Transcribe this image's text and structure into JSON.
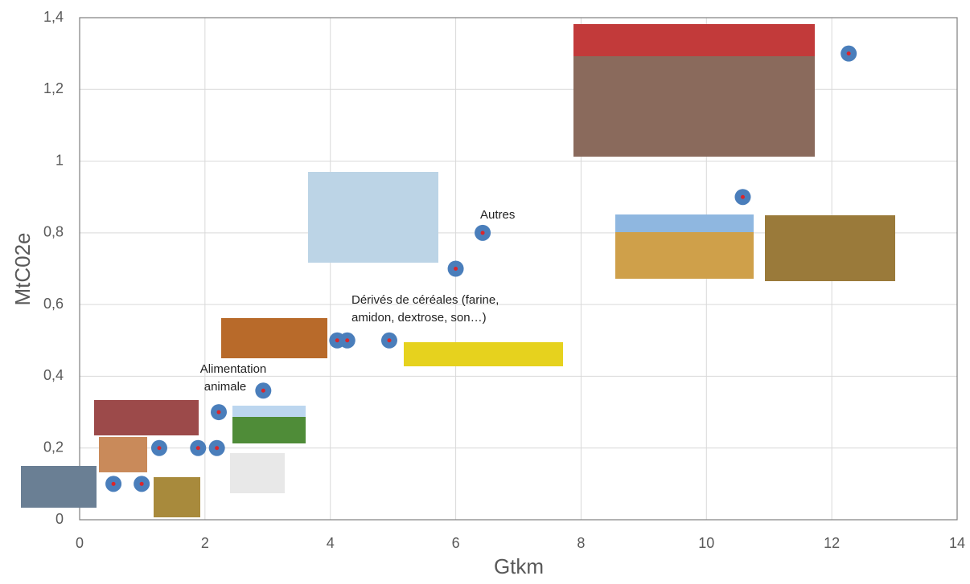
{
  "chart_data": {
    "type": "scatter",
    "x_label": "Gtkm",
    "y_label": "MtC02e",
    "x": [
      0.54,
      0.99,
      1.27,
      1.89,
      2.19,
      2.22,
      2.93,
      4.11,
      4.27,
      4.94,
      6.0,
      6.43,
      10.58,
      12.27
    ],
    "values": [
      0.1,
      0.1,
      0.2,
      0.2,
      0.2,
      0.3,
      0.36,
      0.5,
      0.5,
      0.5,
      0.7,
      0.8,
      0.9,
      1.3
    ],
    "color": "#4a7ebb",
    "xlim": [
      0,
      14
    ],
    "xticks": [
      0,
      2,
      4,
      6,
      8,
      10,
      12,
      14
    ],
    "ylim": [
      0,
      1.4
    ],
    "yticks": [
      0,
      {
        "value": 0.2,
        "label": "0,2"
      },
      {
        "value": 0.4,
        "label": "0,4"
      },
      {
        "value": 0.6,
        "label": "0,6"
      },
      {
        "value": 0.8,
        "label": "0,8"
      },
      1,
      {
        "value": 1.2,
        "label": "1,2"
      },
      {
        "value": 1.4,
        "label": "1,4"
      }
    ],
    "grid": true,
    "annotations": [
      {
        "lines": [
          "Autres"
        ]
      },
      {
        "lines": [
          "Dérivés de céréales (farine,",
          "amidon, dextrose, son…)"
        ]
      },
      {
        "lines": [
          "Alimentation",
          "animale"
        ]
      }
    ]
  }
}
